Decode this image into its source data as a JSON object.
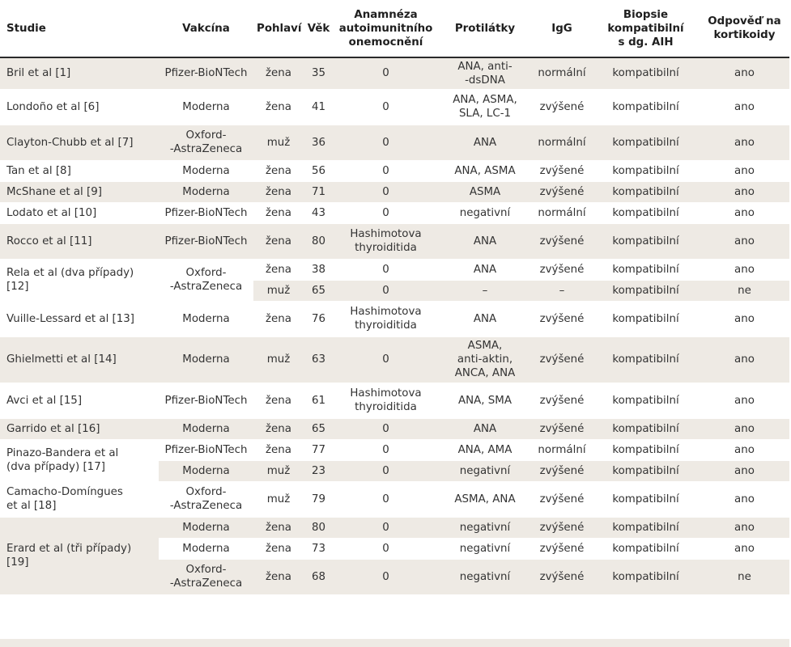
{
  "table": {
    "headers": [
      [
        "Studie"
      ],
      [
        "Vakcína"
      ],
      [
        "Pohlaví"
      ],
      [
        "Věk"
      ],
      [
        "Anamnéza",
        "autoimunitního",
        "onemocnění"
      ],
      [
        "Protilátky"
      ],
      [
        "IgG"
      ],
      [
        "Biopsie",
        "kompatibilní",
        "s dg. AIH"
      ],
      [
        "Odpověď na",
        "kortikoidy"
      ]
    ],
    "rows": [
      {
        "study": [
          "Bril et al [1]"
        ],
        "vaccine": [
          "Pfizer-BioNTech"
        ],
        "sex": "žena",
        "age": "35",
        "history": [
          "0"
        ],
        "antibodies": [
          "ANA, anti-",
          "-dsDNA"
        ],
        "igg": "normální",
        "biopsy": "kompatibilní",
        "response": "ano"
      },
      {
        "study": [
          "Londoño et al [6]"
        ],
        "vaccine": [
          "Moderna"
        ],
        "sex": "žena",
        "age": "41",
        "history": [
          "0"
        ],
        "antibodies": [
          "ANA, ASMA,",
          "SLA, LC-1"
        ],
        "igg": "zvýšené",
        "biopsy": "kompatibilní",
        "response": "ano"
      },
      {
        "study": [
          "Clayton-Chubb et al [7]"
        ],
        "vaccine": [
          "Oxford-",
          "-AstraZeneca"
        ],
        "sex": "muž",
        "age": "36",
        "history": [
          "0"
        ],
        "antibodies": [
          "ANA"
        ],
        "igg": "normální",
        "biopsy": "kompatibilní",
        "response": "ano"
      },
      {
        "study": [
          "Tan et al [8]"
        ],
        "vaccine": [
          "Moderna"
        ],
        "sex": "žena",
        "age": "56",
        "history": [
          "0"
        ],
        "antibodies": [
          "ANA, ASMA"
        ],
        "igg": "zvýšené",
        "biopsy": "kompatibilní",
        "response": "ano"
      },
      {
        "study": [
          "McShane et al [9]"
        ],
        "vaccine": [
          "Moderna"
        ],
        "sex": "žena",
        "age": "71",
        "history": [
          "0"
        ],
        "antibodies": [
          "ASMA"
        ],
        "igg": "zvýšené",
        "biopsy": "kompatibilní",
        "response": "ano"
      },
      {
        "study": [
          "Lodato et al [10]"
        ],
        "vaccine": [
          "Pfizer-BioNTech"
        ],
        "sex": "žena",
        "age": "43",
        "history": [
          "0"
        ],
        "antibodies": [
          "negativní"
        ],
        "igg": "normální",
        "biopsy": "kompatibilní",
        "response": "ano"
      },
      {
        "study": [
          "Rocco et al [11]"
        ],
        "vaccine": [
          "Pfizer-BioNTech"
        ],
        "sex": "žena",
        "age": "80",
        "history": [
          "Hashimotova",
          "thyroiditida"
        ],
        "antibodies": [
          "ANA"
        ],
        "igg": "zvýšené",
        "biopsy": "kompatibilní",
        "response": "ano"
      },
      {
        "study": [
          "Rela et al (dva případy)",
          "[12]"
        ],
        "vaccine": [
          "Oxford-",
          "-AstraZeneca"
        ],
        "sex": "žena",
        "age": "38",
        "history": [
          "0"
        ],
        "antibodies": [
          "ANA"
        ],
        "igg": "zvýšené",
        "biopsy": "kompatibilní",
        "response": "ano"
      },
      {
        "sex": "muž",
        "age": "65",
        "history": [
          "0"
        ],
        "antibodies": [
          "–"
        ],
        "igg": "–",
        "biopsy": "kompatibilní",
        "response": "ne"
      },
      {
        "study": [
          "Vuille-Lessard et al [13]"
        ],
        "vaccine": [
          "Moderna"
        ],
        "sex": "žena",
        "age": "76",
        "history": [
          "Hashimotova",
          "thyroiditida"
        ],
        "antibodies": [
          "ANA"
        ],
        "igg": "zvýšené",
        "biopsy": "kompatibilní",
        "response": "ano"
      },
      {
        "study": [
          "Ghielmetti et al [14]"
        ],
        "vaccine": [
          "Moderna"
        ],
        "sex": "muž",
        "age": "63",
        "history": [
          "0"
        ],
        "antibodies": [
          "ASMA,",
          "anti-aktin,",
          "ANCA, ANA"
        ],
        "igg": "zvýšené",
        "biopsy": "kompatibilní",
        "response": "ano"
      },
      {
        "study": [
          "Avci et al [15]"
        ],
        "vaccine": [
          "Pfizer-BioNTech"
        ],
        "sex": "žena",
        "age": "61",
        "history": [
          "Hashimotova",
          "thyroiditida"
        ],
        "antibodies": [
          "ANA, SMA"
        ],
        "igg": "zvýšené",
        "biopsy": "kompatibilní",
        "response": "ano"
      },
      {
        "study": [
          "Garrido et al [16]"
        ],
        "vaccine": [
          "Moderna"
        ],
        "sex": "žena",
        "age": "65",
        "history": [
          "0"
        ],
        "antibodies": [
          "ANA"
        ],
        "igg": "zvýšené",
        "biopsy": "kompatibilní",
        "response": "ano"
      },
      {
        "study": [
          "Pinazo-Bandera et al",
          "(dva případy) [17]"
        ],
        "vaccine": [
          "Pfizer-BioNTech"
        ],
        "sex": "žena",
        "age": "77",
        "history": [
          "0"
        ],
        "antibodies": [
          "ANA, AMA"
        ],
        "igg": "normální",
        "biopsy": "kompatibilní",
        "response": "ano"
      },
      {
        "vaccine": [
          "Moderna"
        ],
        "sex": "muž",
        "age": "23",
        "history": [
          "0"
        ],
        "antibodies": [
          "negativní"
        ],
        "igg": "zvýšené",
        "biopsy": "kompatibilní",
        "response": "ano"
      },
      {
        "study": [
          "Camacho-Domíngues",
          "et al [18]"
        ],
        "vaccine": [
          "Oxford-",
          "-AstraZeneca"
        ],
        "sex": "muž",
        "age": "79",
        "history": [
          "0"
        ],
        "antibodies": [
          "ASMA, ANA"
        ],
        "igg": "zvýšené",
        "biopsy": "kompatibilní",
        "response": "ano"
      },
      {
        "study": [
          "Erard et al (tři případy)",
          "[19]"
        ],
        "vaccine": [
          "Moderna"
        ],
        "sex": "žena",
        "age": "80",
        "history": [
          "0"
        ],
        "antibodies": [
          "negativní"
        ],
        "igg": "zvýšené",
        "biopsy": "kompatibilní",
        "response": "ano"
      },
      {
        "vaccine": [
          "Moderna"
        ],
        "sex": "žena",
        "age": "73",
        "history": [
          "0"
        ],
        "antibodies": [
          "negativní"
        ],
        "igg": "zvýšené",
        "biopsy": "kompatibilní",
        "response": "ano"
      },
      {
        "vaccine": [
          "Oxford-",
          "-AstraZeneca"
        ],
        "sex": "žena",
        "age": "68",
        "history": [
          "0"
        ],
        "antibodies": [
          "negativní"
        ],
        "igg": "zvýšené",
        "biopsy": "kompatibilní",
        "response": "ne"
      }
    ]
  }
}
